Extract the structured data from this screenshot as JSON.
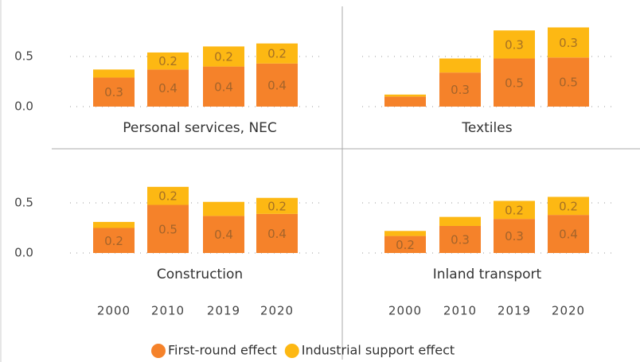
{
  "chart_data": [
    {
      "type": "bar",
      "stacked": true,
      "title": "Personal services, NEC",
      "series": [
        {
          "name": "First-round effect",
          "color": "#f5822a",
          "values": [
            0.29,
            0.37,
            0.4,
            0.43
          ],
          "value_labels": [
            "0.3",
            "0.4",
            "0.4",
            "0.4"
          ]
        },
        {
          "name": "Industrial support effect",
          "color": "#fdb813",
          "values": [
            0.08,
            0.17,
            0.2,
            0.2
          ],
          "value_labels": [
            null,
            "0.2",
            "0.2",
            "0.2"
          ]
        }
      ],
      "ylim": [
        0,
        0.85
      ],
      "yticks": [
        {
          "value": 0,
          "label": "0.0"
        },
        0.5
      ],
      "grid": true
    },
    {
      "type": "bar",
      "stacked": true,
      "title": "Textiles",
      "series": [
        {
          "name": "First-round effect",
          "color": "#f5822a",
          "values": [
            0.1,
            0.34,
            0.48,
            0.49
          ],
          "value_labels": [
            null,
            "0.3",
            "0.5",
            "0.5"
          ]
        },
        {
          "name": "Industrial support effect",
          "color": "#fdb813",
          "values": [
            0.02,
            0.14,
            0.28,
            0.3
          ],
          "value_labels": [
            null,
            null,
            "0.3",
            "0.3"
          ]
        }
      ],
      "ylim": [
        0,
        0.85
      ],
      "yticks": [
        {
          "value": 0,
          "label": "0.0"
        },
        0.5
      ],
      "grid": true
    },
    {
      "type": "bar",
      "stacked": true,
      "title": "Construction",
      "categories": [
        "2000",
        "2010",
        "2019",
        "2020"
      ],
      "series": [
        {
          "name": "First-round effect",
          "color": "#f5822a",
          "values": [
            0.25,
            0.48,
            0.37,
            0.39
          ],
          "value_labels": [
            "0.2",
            "0.5",
            "0.4",
            "0.4"
          ]
        },
        {
          "name": "Industrial support effect",
          "color": "#fdb813",
          "values": [
            0.06,
            0.18,
            0.14,
            0.16
          ],
          "value_labels": [
            null,
            "0.2",
            null,
            "0.2"
          ]
        }
      ],
      "ylim": [
        0,
        0.85
      ],
      "yticks": [
        {
          "value": 0,
          "label": "0.0"
        },
        0.5
      ],
      "grid": true
    },
    {
      "type": "bar",
      "stacked": true,
      "title": "Inland transport",
      "categories": [
        "2000",
        "2010",
        "2019",
        "2020"
      ],
      "series": [
        {
          "name": "First-round effect",
          "color": "#f5822a",
          "values": [
            0.17,
            0.27,
            0.34,
            0.38
          ],
          "value_labels": [
            "0.2",
            "0.3",
            "0.3",
            "0.4"
          ]
        },
        {
          "name": "Industrial support effect",
          "color": "#fdb813",
          "values": [
            0.05,
            0.09,
            0.18,
            0.18
          ],
          "value_labels": [
            null,
            null,
            "0.2",
            "0.2"
          ]
        }
      ],
      "ylim": [
        0,
        0.85
      ],
      "yticks": [
        {
          "value": 0,
          "label": "0.0"
        },
        0.5
      ],
      "grid": true
    }
  ]
}
